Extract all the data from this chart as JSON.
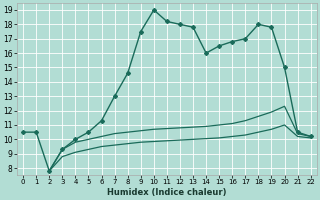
{
  "xlabel": "Humidex (Indice chaleur)",
  "bg_color": "#b2ddd4",
  "grid_color": "#ffffff",
  "line_color": "#1a6b5a",
  "xlim": [
    -0.5,
    22.5
  ],
  "ylim": [
    7.5,
    19.5
  ],
  "xticks": [
    0,
    1,
    2,
    3,
    4,
    5,
    6,
    7,
    8,
    9,
    10,
    11,
    12,
    13,
    14,
    15,
    16,
    17,
    18,
    19,
    20,
    21,
    22
  ],
  "yticks": [
    8,
    9,
    10,
    11,
    12,
    13,
    14,
    15,
    16,
    17,
    18,
    19
  ],
  "line1_x": [
    0,
    1,
    2,
    3,
    4,
    5,
    6,
    7,
    8,
    9,
    10,
    11,
    12,
    13,
    14,
    15,
    16,
    17,
    18,
    19,
    20,
    21,
    22
  ],
  "line1_y": [
    10.5,
    10.5,
    7.8,
    9.3,
    10.0,
    10.5,
    11.3,
    13.0,
    14.6,
    17.5,
    19.0,
    18.2,
    18.0,
    17.8,
    16.0,
    16.5,
    16.8,
    17.0,
    18.0,
    17.8,
    15.0,
    10.5,
    10.2
  ],
  "line2_x": [
    2,
    3,
    4,
    5,
    6,
    7,
    8,
    9,
    10,
    11,
    12,
    13,
    14,
    15,
    16,
    17,
    18,
    19,
    20,
    21,
    22
  ],
  "line2_y": [
    7.8,
    9.3,
    9.8,
    10.0,
    10.2,
    10.4,
    10.5,
    10.6,
    10.7,
    10.75,
    10.8,
    10.85,
    10.9,
    11.0,
    11.1,
    11.3,
    11.6,
    11.9,
    12.3,
    10.4,
    10.2
  ],
  "line3_x": [
    2,
    3,
    4,
    5,
    6,
    7,
    8,
    9,
    10,
    11,
    12,
    13,
    14,
    15,
    16,
    17,
    18,
    19,
    20,
    21,
    22
  ],
  "line3_y": [
    7.8,
    8.8,
    9.1,
    9.3,
    9.5,
    9.6,
    9.7,
    9.8,
    9.85,
    9.9,
    9.95,
    10.0,
    10.05,
    10.1,
    10.2,
    10.3,
    10.5,
    10.7,
    11.0,
    10.2,
    10.1
  ]
}
